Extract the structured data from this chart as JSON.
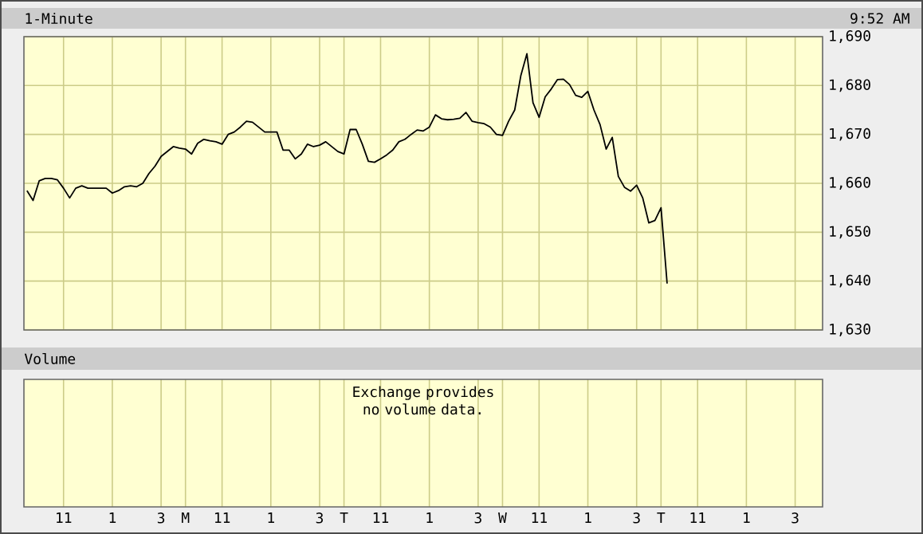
{
  "chart_data": [
    {
      "type": "line",
      "title": "1-Minute",
      "annotations": [
        "9:52 AM"
      ],
      "categories": [
        null,
        null,
        null,
        null,
        null,
        null,
        null,
        null,
        null,
        null,
        null,
        null,
        null,
        null,
        null,
        null,
        null,
        null,
        null,
        null,
        null,
        null,
        null,
        null,
        null,
        null,
        null,
        null,
        null,
        null,
        null,
        null,
        null,
        null,
        null,
        null,
        null,
        null,
        null,
        null,
        null,
        null,
        null,
        null,
        null,
        null,
        null,
        null,
        null,
        null,
        null,
        null,
        null,
        null,
        null,
        null,
        null,
        null,
        null,
        null,
        null,
        null,
        null,
        null,
        null,
        null,
        null,
        null,
        null,
        null,
        null,
        null,
        null,
        null,
        null,
        null,
        null,
        null,
        null,
        null,
        null,
        null,
        null,
        null,
        null,
        null,
        null,
        null,
        null,
        null,
        null,
        null,
        null,
        null,
        null,
        null,
        null,
        null,
        null,
        null,
        null,
        null,
        null,
        null,
        null,
        null,
        null,
        null,
        null,
        null,
        null,
        null,
        null,
        null,
        null,
        null,
        null,
        null,
        null,
        null,
        null,
        null,
        null,
        null,
        null,
        null,
        null,
        null,
        null,
        null,
        null
      ],
      "series": [
        {
          "color": "#000000",
          "values": [
            1658.5,
            1656.5,
            1660.5,
            1661,
            1661,
            1660.7,
            1659,
            1657,
            1659,
            1659.5,
            1659,
            1659,
            1659,
            1659,
            1658,
            1658.5,
            1659.3,
            1659.5,
            1659.3,
            1660,
            1662,
            1663.5,
            1665.5,
            1666.5,
            1667.5,
            1667.2,
            1667,
            1666,
            1668.2,
            1669,
            1668.7,
            1668.5,
            1668,
            1670,
            1670.5,
            1671.5,
            1672.7,
            1672.5,
            1671.5,
            1670.5,
            1670.5,
            1670.5,
            1666.8,
            1666.8,
            1665,
            1666,
            1668,
            1667.5,
            1667.8,
            1668.5,
            1667.5,
            1666.5,
            1666,
            1671,
            1671,
            1668,
            1664.5,
            1664.3,
            1665,
            1665.8,
            1666.8,
            1668.5,
            1669,
            1670,
            1670.9,
            1670.7,
            1671.5,
            1674,
            1673.2,
            1673,
            1673.1,
            1673.3,
            1674.5,
            1672.7,
            1672.4,
            1672.2,
            1671.5,
            1670,
            1669.8,
            1672.7,
            1675,
            1682,
            1686.5,
            1676.5,
            1673.5,
            1677.7,
            1679.3,
            1681.2,
            1681.3,
            1680.2,
            1678,
            1677.6,
            1678.8,
            1675,
            1672,
            1667,
            1669.4,
            1661.4,
            1659.2,
            1658.4,
            1659.6,
            1657,
            1651.9,
            1652.4,
            1655,
            1639.5,
            null,
            null,
            null,
            null,
            null,
            null,
            null,
            null,
            null,
            null,
            null,
            null,
            null,
            null,
            null,
            null,
            null,
            null,
            null,
            null,
            null,
            null,
            null,
            null,
            null
          ]
        }
      ],
      "ylim": [
        1630,
        1690
      ],
      "yticks": [
        {
          "value": 1630,
          "label": "1,630"
        },
        {
          "value": 1640,
          "label": "1,640"
        },
        {
          "value": 1650,
          "label": "1,650"
        },
        {
          "value": 1660,
          "label": "1,660"
        },
        {
          "value": 1670,
          "label": "1,670"
        },
        {
          "value": 1680,
          "label": "1,680"
        },
        {
          "value": 1690,
          "label": "1,690"
        }
      ],
      "grid": true,
      "tick_labels": "y"
    },
    {
      "type": "other",
      "title": "Volume",
      "annotations": [
        "Exchange provides no volume data."
      ],
      "categories": [
        null,
        null,
        null,
        null,
        null,
        null,
        "11",
        null,
        null,
        null,
        null,
        null,
        null,
        null,
        "1",
        null,
        null,
        null,
        null,
        null,
        null,
        null,
        "3",
        null,
        null,
        null,
        "M",
        null,
        null,
        null,
        null,
        null,
        "11",
        null,
        null,
        null,
        null,
        null,
        null,
        null,
        "1",
        null,
        null,
        null,
        null,
        null,
        null,
        null,
        "3",
        null,
        null,
        null,
        "T",
        null,
        null,
        null,
        null,
        null,
        "11",
        null,
        null,
        null,
        null,
        null,
        null,
        null,
        "1",
        null,
        null,
        null,
        null,
        null,
        null,
        null,
        "3",
        null,
        null,
        null,
        "W",
        null,
        null,
        null,
        null,
        null,
        "11",
        null,
        null,
        null,
        null,
        null,
        null,
        null,
        "1",
        null,
        null,
        null,
        null,
        null,
        null,
        null,
        "3",
        null,
        null,
        null,
        "T",
        null,
        null,
        null,
        null,
        null,
        "11",
        null,
        null,
        null,
        null,
        null,
        null,
        null,
        "1",
        null,
        null,
        null,
        null,
        null,
        null,
        null,
        "3",
        null,
        null,
        null,
        null
      ]
    }
  ]
}
